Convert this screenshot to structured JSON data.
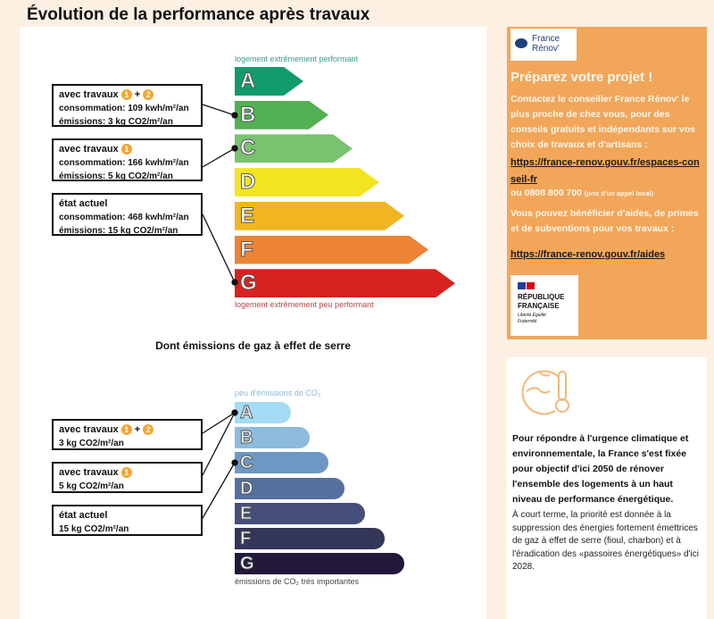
{
  "title": "Évolution de la performance après travaux",
  "energy": {
    "top_label": "logement extrêmement performant",
    "bottom_label": "logement extrêmement peu performant",
    "classes": [
      {
        "letter": "A",
        "color": "#109a6e"
      },
      {
        "letter": "B",
        "color": "#52b153"
      },
      {
        "letter": "C",
        "color": "#79c26f"
      },
      {
        "letter": "D",
        "color": "#f4e521"
      },
      {
        "letter": "E",
        "color": "#f0b520"
      },
      {
        "letter": "F",
        "color": "#ec8434"
      },
      {
        "letter": "G",
        "color": "#d7221f"
      }
    ],
    "boxes": [
      {
        "heading": "avec travaux",
        "badges": [
          "1",
          "2"
        ],
        "plus": "+",
        "line1": "consommation: 109 kwh/m²/an",
        "line2": "émissions: 3 kg CO2/m²/an",
        "class": "B"
      },
      {
        "heading": "avec travaux",
        "badges": [
          "1"
        ],
        "line1": "consommation: 166 kwh/m²/an",
        "line2": "émissions: 5 kg CO2/m²/an",
        "class": "C"
      },
      {
        "heading": "état actuel",
        "line1": "consommation:   468 kwh/m²/an",
        "line2": "émissions: 15 kg CO2/m²/an",
        "class": "G"
      }
    ]
  },
  "co2": {
    "title": "Dont émissions de gaz à effet de serre",
    "top_label": "peu d'émissions de CO₂",
    "bottom_label": "émissions de CO₂ très importantes",
    "classes": [
      {
        "letter": "A",
        "color": "#a4dbf5"
      },
      {
        "letter": "B",
        "color": "#8dbbdd"
      },
      {
        "letter": "C",
        "color": "#6e98c3"
      },
      {
        "letter": "D",
        "color": "#56709e"
      },
      {
        "letter": "E",
        "color": "#464f7a"
      },
      {
        "letter": "F",
        "color": "#333659"
      },
      {
        "letter": "G",
        "color": "#22193a"
      }
    ],
    "boxes": [
      {
        "heading": "avec travaux",
        "badges": [
          "1",
          "2"
        ],
        "plus": "+",
        "line1": "3 kg CO2/m²/an",
        "class": "A"
      },
      {
        "heading": "avec travaux",
        "badges": [
          "1"
        ],
        "line1": "5 kg CO2/m²/an",
        "class": "A"
      },
      {
        "heading": "état actuel",
        "line1": "15 kg CO2/m²/an",
        "class": "C"
      }
    ]
  },
  "sidebar": {
    "logo": "France Rénov'",
    "heading": "Préparez votre projet !",
    "p1": "Contactez le conseiller France Rénov' le plus proche de chez vous, pour des conseils gratuits et indépendants sur vos choix de travaux et d'artisans :",
    "link1": "https://france-renov.gouv.fr/espaces-conseil-fr",
    "phone": "ou 0808 800 700",
    "phone_note": "(prix d'un appel local)",
    "p2": "Vous pouvez bénéficier d'aides, de primes et de subventions pour vos travaux :",
    "link2": "https://france-renov.gouv.fr/aides",
    "rf_logo": "RÉPUBLIQUE FRANÇAISE",
    "rf_motto": "Liberté Égalité Fraternité"
  },
  "info": {
    "icon": "globe-thermometer-icon",
    "bold": "Pour répondre à l'urgence climatique et environnementale, la France s'est fixée pour objectif d'ici 2050 de rénover l'ensemble des logements à un haut niveau de performance énergétique.",
    "text": "À court terme, la priorité est donnée à la suppression des énergies fortement émettrices de gaz à effet de serre (fioul, charbon) et à l'éradication des «passoires énergétiques» d'ici 2028."
  }
}
